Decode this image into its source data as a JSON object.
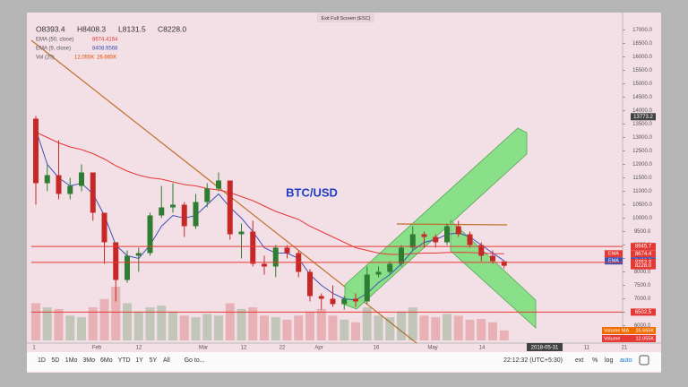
{
  "window": {
    "exit_fullscreen": "Exit Full Screen (ESC)"
  },
  "chart_data": {
    "type": "candlestick",
    "title": "BTC/USD",
    "ohlc_header": [
      "O8393.4",
      "H8408.3",
      "L8131.5",
      "C8228.0"
    ],
    "ylim": [
      5350,
      17450
    ],
    "yticks": [
      {
        "value": 6000,
        "label": "6000.0"
      },
      {
        "value": 6500,
        "label": "6500.0"
      },
      {
        "value": 7000,
        "label": "7000.0"
      },
      {
        "value": 7500,
        "label": "7500.0"
      },
      {
        "value": 8000,
        "label": "8000.0"
      },
      {
        "value": 8500,
        "label": "8500.0"
      },
      {
        "value": 9000,
        "label": "9000.0"
      },
      {
        "value": 9500,
        "label": "9500.0"
      },
      {
        "value": 10000,
        "label": "10000.0"
      },
      {
        "value": 10500,
        "label": "10500.0"
      },
      {
        "value": 11000,
        "label": "11000.0"
      },
      {
        "value": 11500,
        "label": "11500.0"
      },
      {
        "value": 12000,
        "label": "12000.0"
      },
      {
        "value": 12500,
        "label": "12500.0"
      },
      {
        "value": 13000,
        "label": "13000.0"
      },
      {
        "value": 13500,
        "label": "13500.0"
      },
      {
        "value": 14000,
        "label": "14000.0"
      },
      {
        "value": 14500,
        "label": "14500.0"
      },
      {
        "value": 15000,
        "label": "15000.0"
      },
      {
        "value": 15500,
        "label": "15500.0"
      },
      {
        "value": 16000,
        "label": "16000.0"
      },
      {
        "value": 16500,
        "label": "16500.0"
      },
      {
        "value": 17000,
        "label": "17000.0"
      }
    ],
    "time_labels": [
      "1",
      "Feb",
      "12",
      "Mar",
      "12",
      "22",
      "Apr",
      "16",
      "May",
      "14",
      "2018-05-31",
      "11",
      "21"
    ],
    "up_color": "#2e7d32",
    "down_color": "#c62828",
    "x": [
      "2018-01-16",
      "2018-01-19",
      "2018-01-22",
      "2018-01-25",
      "2018-01-28",
      "2018-01-31",
      "2018-02-03",
      "2018-02-06",
      "2018-02-09",
      "2018-02-12",
      "2018-02-15",
      "2018-02-18",
      "2018-02-21",
      "2018-02-24",
      "2018-02-27",
      "2018-03-02",
      "2018-03-05",
      "2018-03-08",
      "2018-03-11",
      "2018-03-14",
      "2018-03-17",
      "2018-03-20",
      "2018-03-23",
      "2018-03-26",
      "2018-03-29",
      "2018-04-01",
      "2018-04-04",
      "2018-04-07",
      "2018-04-10",
      "2018-04-13",
      "2018-04-16",
      "2018-04-19",
      "2018-04-22",
      "2018-04-25",
      "2018-04-28",
      "2018-05-01",
      "2018-05-04",
      "2018-05-07",
      "2018-05-10",
      "2018-05-13",
      "2018-05-16",
      "2018-05-19"
    ],
    "open": [
      13700,
      11300,
      11600,
      10900,
      11200,
      11700,
      10200,
      9100,
      7700,
      8600,
      8700,
      10100,
      10400,
      10500,
      9700,
      10600,
      11100,
      11400,
      9400,
      9500,
      8300,
      8200,
      8900,
      8700,
      8000,
      7100,
      7000,
      6800,
      7000,
      6900,
      7900,
      8000,
      8300,
      8900,
      9400,
      9300,
      9100,
      9700,
      9400,
      9000,
      8600,
      8393.4
    ],
    "high": [
      13800,
      12000,
      12900,
      11500,
      12000,
      11700,
      10200,
      9100,
      8800,
      8900,
      10200,
      11200,
      11300,
      10600,
      10900,
      11300,
      11700,
      11400,
      9800,
      9900,
      8600,
      9000,
      9000,
      8800,
      8100,
      7200,
      7500,
      7100,
      7200,
      8200,
      8200,
      8400,
      9000,
      9700,
      9500,
      9400,
      9800,
      9900,
      9500,
      9100,
      8800,
      8408.3
    ],
    "low": [
      10500,
      11000,
      10700,
      10700,
      11000,
      9900,
      8300,
      6900,
      7600,
      8000,
      8600,
      10000,
      10200,
      9300,
      9600,
      10400,
      11000,
      9200,
      8500,
      8200,
      7900,
      7800,
      8500,
      7800,
      6900,
      6600,
      6700,
      6600,
      6700,
      6800,
      7800,
      7900,
      8200,
      8800,
      8900,
      8900,
      9000,
      9300,
      8900,
      8400,
      8300,
      8131.5
    ],
    "close": [
      11300,
      11600,
      10900,
      11200,
      11700,
      10200,
      9100,
      7700,
      8600,
      8700,
      10100,
      10400,
      10500,
      9700,
      10600,
      11100,
      11400,
      9400,
      9500,
      8300,
      8200,
      8900,
      8700,
      8000,
      7100,
      7000,
      6800,
      7000,
      6900,
      7900,
      8000,
      8300,
      8900,
      9400,
      9300,
      9100,
      9700,
      9400,
      9000,
      8600,
      8400,
      8228.0
    ],
    "volume": [
      45,
      40,
      38,
      30,
      28,
      40,
      50,
      65,
      45,
      35,
      40,
      42,
      35,
      30,
      28,
      32,
      30,
      45,
      38,
      40,
      30,
      28,
      25,
      30,
      35,
      38,
      30,
      25,
      22,
      40,
      30,
      28,
      35,
      40,
      30,
      28,
      32,
      30,
      25,
      26,
      22,
      12.055
    ],
    "series": [
      {
        "name": "EMA (50, close)",
        "last_label": "8674.4164",
        "color": "#e53935",
        "values": [
          13200,
          13000,
          12800,
          12650,
          12550,
          12400,
          12200,
          11950,
          11750,
          11600,
          11500,
          11450,
          11350,
          11250,
          11200,
          11100,
          11050,
          10950,
          10800,
          10650,
          10450,
          10250,
          10100,
          9950,
          9700,
          9500,
          9300,
          9100,
          8900,
          8800,
          8700,
          8650,
          8650,
          8680,
          8700,
          8700,
          8720,
          8730,
          8720,
          8700,
          8680,
          8674.4164
        ]
      },
      {
        "name": "EMA (9, close)",
        "last_label": "8408.9568",
        "color": "#3f51b5",
        "values": [
          13300,
          12000,
          11500,
          11200,
          11300,
          10900,
          10100,
          9000,
          8600,
          8500,
          9000,
          9700,
          10100,
          10000,
          10100,
          10500,
          10900,
          10400,
          10000,
          9500,
          8900,
          8700,
          8700,
          8500,
          7900,
          7500,
          7200,
          7000,
          6950,
          7200,
          7600,
          7900,
          8300,
          8800,
          9100,
          9200,
          9400,
          9450,
          9300,
          9000,
          8700,
          8408.9568
        ]
      }
    ],
    "volume_legend": {
      "name": "Vol (20)",
      "labels": [
        "12.055K",
        "26.665K"
      ],
      "color": "#e65100"
    },
    "price_tags": [
      {
        "value": 13773.2,
        "label": "13773.2",
        "color": "#424242",
        "line": false
      },
      {
        "value": 8945.7,
        "label": "8945.7",
        "color": "#e53935",
        "line": true
      },
      {
        "value": 8674.4,
        "label": "8674.4",
        "prefix": "EMA",
        "color": "#e53935",
        "line": false
      },
      {
        "value": 8409.0,
        "label": "8409.0",
        "prefix": "EMA",
        "color": "#3f51b5",
        "line": false
      },
      {
        "value": 8353.8,
        "label": "8353.8",
        "color": "#e53935",
        "line": true
      },
      {
        "value": 8228.0,
        "label": "8228.0",
        "color": "#e53935",
        "line": false
      },
      {
        "value": 6502.5,
        "label": "6502.5",
        "color": "#e53935",
        "line": true
      }
    ],
    "volume_tags": [
      {
        "name": "Volume MA",
        "label": "26.665K"
      },
      {
        "name": "Volume",
        "label": "12.055K"
      }
    ]
  },
  "toolbar": {
    "ranges": [
      "1D",
      "5D",
      "1Mo",
      "3Mo",
      "6Mo",
      "YTD",
      "1Y",
      "5Y",
      "All"
    ],
    "goto": "Go to...",
    "clock": "22:12:32 (UTC+5:30)",
    "options": [
      "ext",
      "%",
      "log",
      "auto"
    ]
  }
}
